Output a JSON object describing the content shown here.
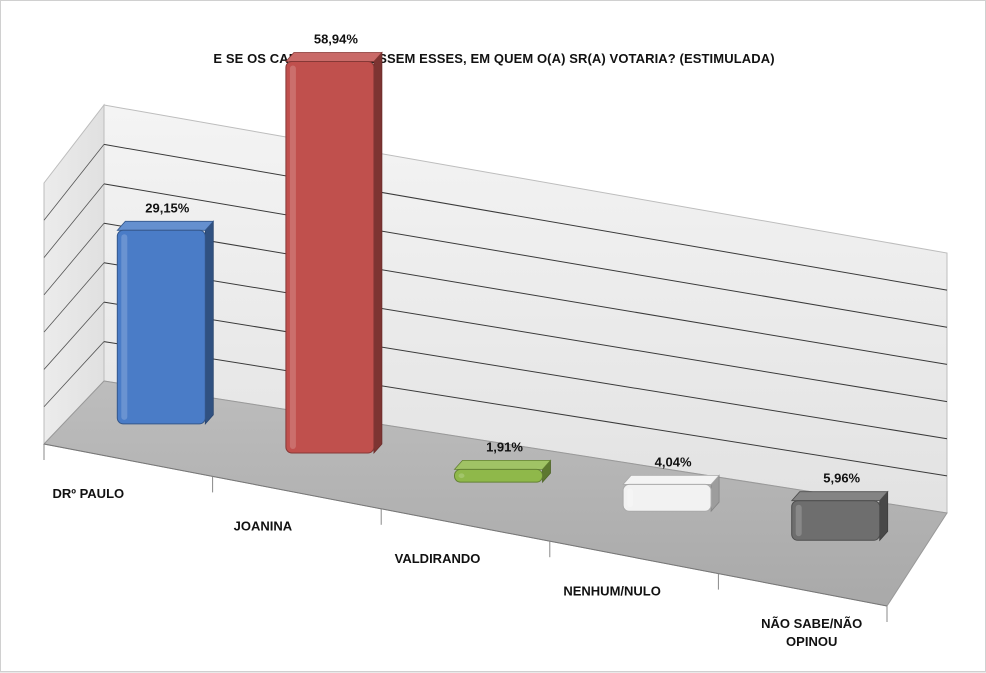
{
  "chart_data": {
    "type": "bar",
    "title": "E SE OS CANDIDATOS FOSSEM ESSES, EM QUEM O(A) SR(A) VOTARIA? (ESTIMULADA)",
    "categories": [
      "DRº PAULO",
      "JOANINA",
      "VALDIRANDO",
      "NENHUM/NULO",
      "NÃO SABE/NÃO OPINOU"
    ],
    "values": [
      29.15,
      58.94,
      1.91,
      4.04,
      5.96
    ],
    "value_labels": [
      "29,15%",
      "58,94%",
      "1,91%",
      "4,04%",
      "5,96%"
    ],
    "category_labels": [
      [
        "DRº PAULO"
      ],
      [
        "JOANINA"
      ],
      [
        "VALDIRANDO"
      ],
      [
        "NENHUM/NULO"
      ],
      [
        "NÃO SABE/NÃO",
        "OPINOU"
      ]
    ],
    "colors": [
      "#4a7cc7",
      "#c0504d",
      "#8fb84a",
      "#f2f2f2",
      "#6e6e6e"
    ],
    "ylim": [
      0,
      70
    ],
    "grid": true,
    "style": "3d-perspective"
  }
}
